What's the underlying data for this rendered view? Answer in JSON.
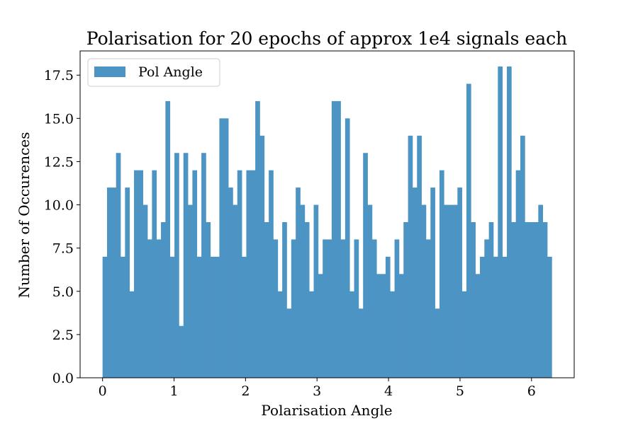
{
  "chart_data": {
    "type": "bar",
    "title": "Polarisation for 20 epochs of approx 1e4 signals each",
    "xlabel": "Polarisation Angle",
    "ylabel": "Number of Occurences",
    "xlim": [
      -0.314,
      6.597
    ],
    "ylim": [
      0,
      18.9
    ],
    "x_ticks": [
      0,
      1,
      2,
      3,
      4,
      5,
      6
    ],
    "x_tick_labels": [
      "0",
      "1",
      "2",
      "3",
      "4",
      "5",
      "6"
    ],
    "y_ticks": [
      0,
      2.5,
      5,
      7.5,
      10,
      12.5,
      15,
      17.5
    ],
    "y_tick_labels": [
      "0.0",
      "2.5",
      "5.0",
      "7.5",
      "10.0",
      "12.5",
      "15.0",
      "17.5"
    ],
    "grid": false,
    "legend_position": "top-left",
    "bin_range": [
      0,
      6.2832
    ],
    "bin_count": 100,
    "series": [
      {
        "name": "Pol Angle",
        "color": "#4c94c4",
        "values": [
          7,
          11,
          11,
          13,
          7,
          11,
          5,
          12,
          12,
          10,
          8,
          12,
          8,
          9,
          16,
          7,
          13,
          3,
          13,
          10,
          12,
          7,
          13,
          9,
          7,
          7,
          15,
          15,
          11,
          10,
          12,
          7,
          12,
          12,
          16,
          14,
          9,
          12,
          8,
          5,
          9,
          4,
          8,
          11,
          10,
          9,
          5,
          10,
          6,
          8,
          8,
          16,
          16,
          8,
          15,
          5,
          8,
          4,
          13,
          10,
          8,
          6,
          6,
          7,
          5,
          8,
          6,
          9,
          14,
          11,
          14,
          10,
          8,
          11,
          4,
          12,
          10,
          10,
          10,
          11,
          5,
          17,
          9,
          6,
          7,
          8,
          9,
          7,
          18,
          7,
          18,
          9,
          12,
          14,
          9,
          9,
          9,
          10,
          9,
          7
        ]
      }
    ]
  }
}
